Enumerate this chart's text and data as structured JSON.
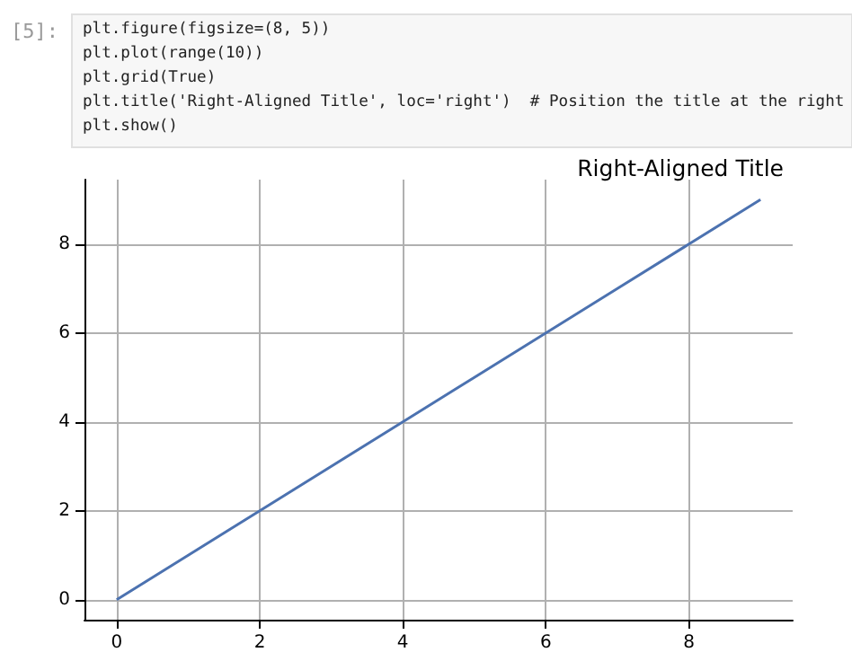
{
  "chart_data": {
    "type": "line",
    "title": "Right-Aligned Title",
    "annotations": [
      "[5]:",
      "plt.figure(figsize=(8, 5))",
      "plt.plot(range(10))",
      "plt.grid(True)",
      "plt.title('Right-Aligned Title', loc='right')  # Position the title at the right",
      "plt.show()"
    ],
    "x": [
      0,
      1,
      2,
      3,
      4,
      5,
      6,
      7,
      8,
      9
    ],
    "series": [
      {
        "color": "#4c72b0",
        "values": [
          0,
          1,
          2,
          3,
          4,
          5,
          6,
          7,
          8,
          9
        ]
      }
    ],
    "xlim": [
      -0.45,
      9.45
    ],
    "ylim": [
      -0.45,
      9.45
    ],
    "xticks": [
      0,
      2,
      4,
      6,
      8
    ],
    "yticks": [
      0,
      2,
      4,
      6,
      8
    ],
    "grid": true
  }
}
